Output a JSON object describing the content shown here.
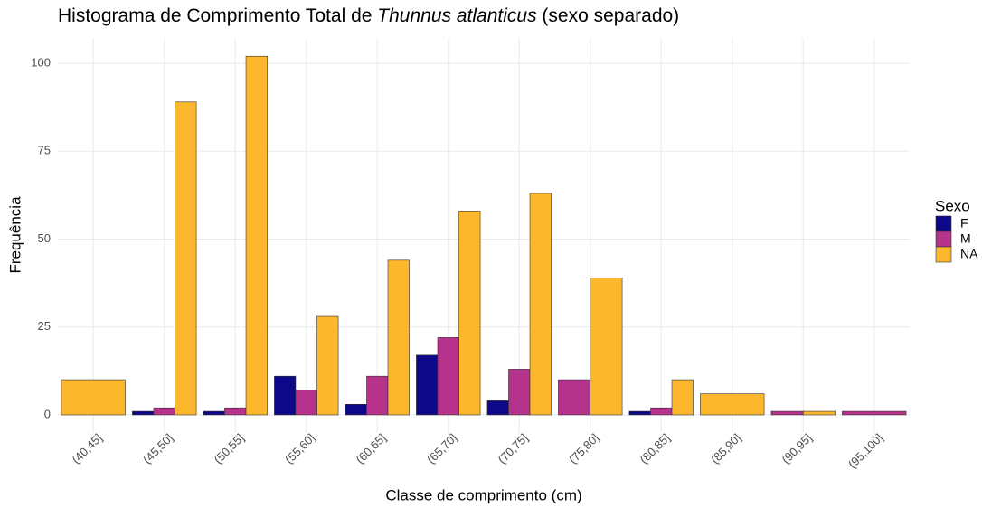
{
  "chart_data": {
    "type": "bar",
    "title": [
      "Histograma de Comprimento Total de",
      "Thunnus atlanticus",
      "(sexo separado)"
    ],
    "x_label": "Classe de comprimento (cm)",
    "y_label": "Frequência",
    "legend_title": "Sexo",
    "legend_position": "right",
    "grid": true,
    "categories": [
      "(40,45]",
      "(45,50]",
      "(50,55]",
      "(55,60]",
      "(60,65]",
      "(65,70]",
      "(70,75]",
      "(75,80]",
      "(80,85]",
      "(85,90]",
      "(90,95]",
      "(95,100]"
    ],
    "series": [
      {
        "name": "F",
        "color": "#0d0887",
        "values": [
          null,
          1,
          1,
          11,
          3,
          17,
          4,
          null,
          1,
          null,
          null,
          null
        ]
      },
      {
        "name": "M",
        "color": "#b5338a",
        "values": [
          null,
          2,
          2,
          7,
          11,
          22,
          13,
          10,
          2,
          null,
          1,
          1
        ]
      },
      {
        "name": "NA",
        "color": "#fdb72d",
        "values": [
          10,
          89,
          102,
          28,
          44,
          58,
          63,
          39,
          10,
          6,
          1,
          null
        ]
      }
    ],
    "ylim": [
      -5.1,
      107.1
    ],
    "yticks": [
      0,
      25,
      50,
      75,
      100
    ]
  }
}
